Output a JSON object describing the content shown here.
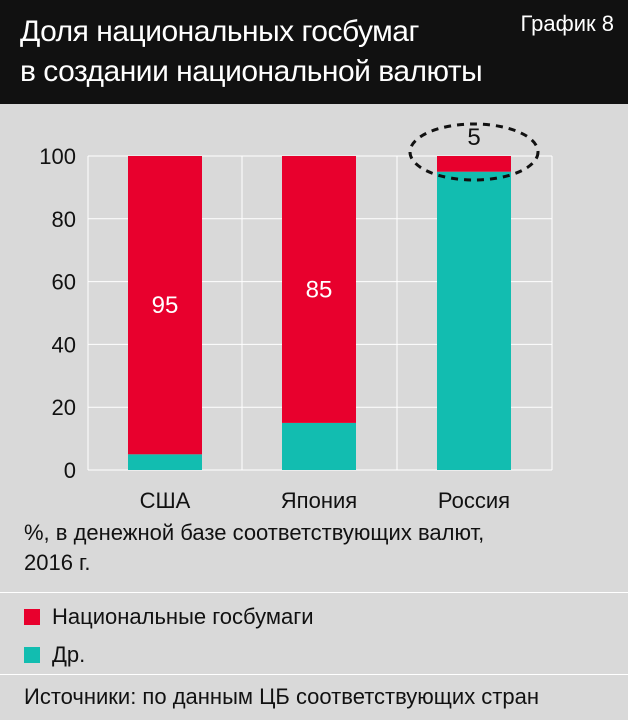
{
  "header": {
    "title_line1": "Доля национальных госбумаг",
    "title_line2": "в создании национальной валюты",
    "chart_label": "График 8"
  },
  "note": {
    "line1": "%, в денежной базе соответствующих валют,",
    "line2": "2016 г."
  },
  "legend": {
    "items": [
      {
        "label": "Национальные госбумаги",
        "color": "#e8002d"
      },
      {
        "label": "Др.",
        "color": "#12bdb0"
      }
    ]
  },
  "source": "Источники: по данным ЦБ соответствующих стран",
  "chart_data": {
    "type": "bar",
    "stacked": true,
    "categories": [
      "США",
      "Япония",
      "Россия"
    ],
    "series": [
      {
        "name": "Национальные госбумаги",
        "color": "#e8002d",
        "values": [
          95,
          85,
          5
        ]
      },
      {
        "name": "Др.",
        "color": "#12bdb0",
        "values": [
          5,
          15,
          95
        ]
      }
    ],
    "data_labels": [
      "95",
      "85",
      "5"
    ],
    "ylim": [
      0,
      100
    ],
    "yticks": [
      0,
      20,
      40,
      60,
      80,
      100
    ],
    "grid": true,
    "highlight": "Россия",
    "xlabel": "",
    "ylabel": ""
  }
}
